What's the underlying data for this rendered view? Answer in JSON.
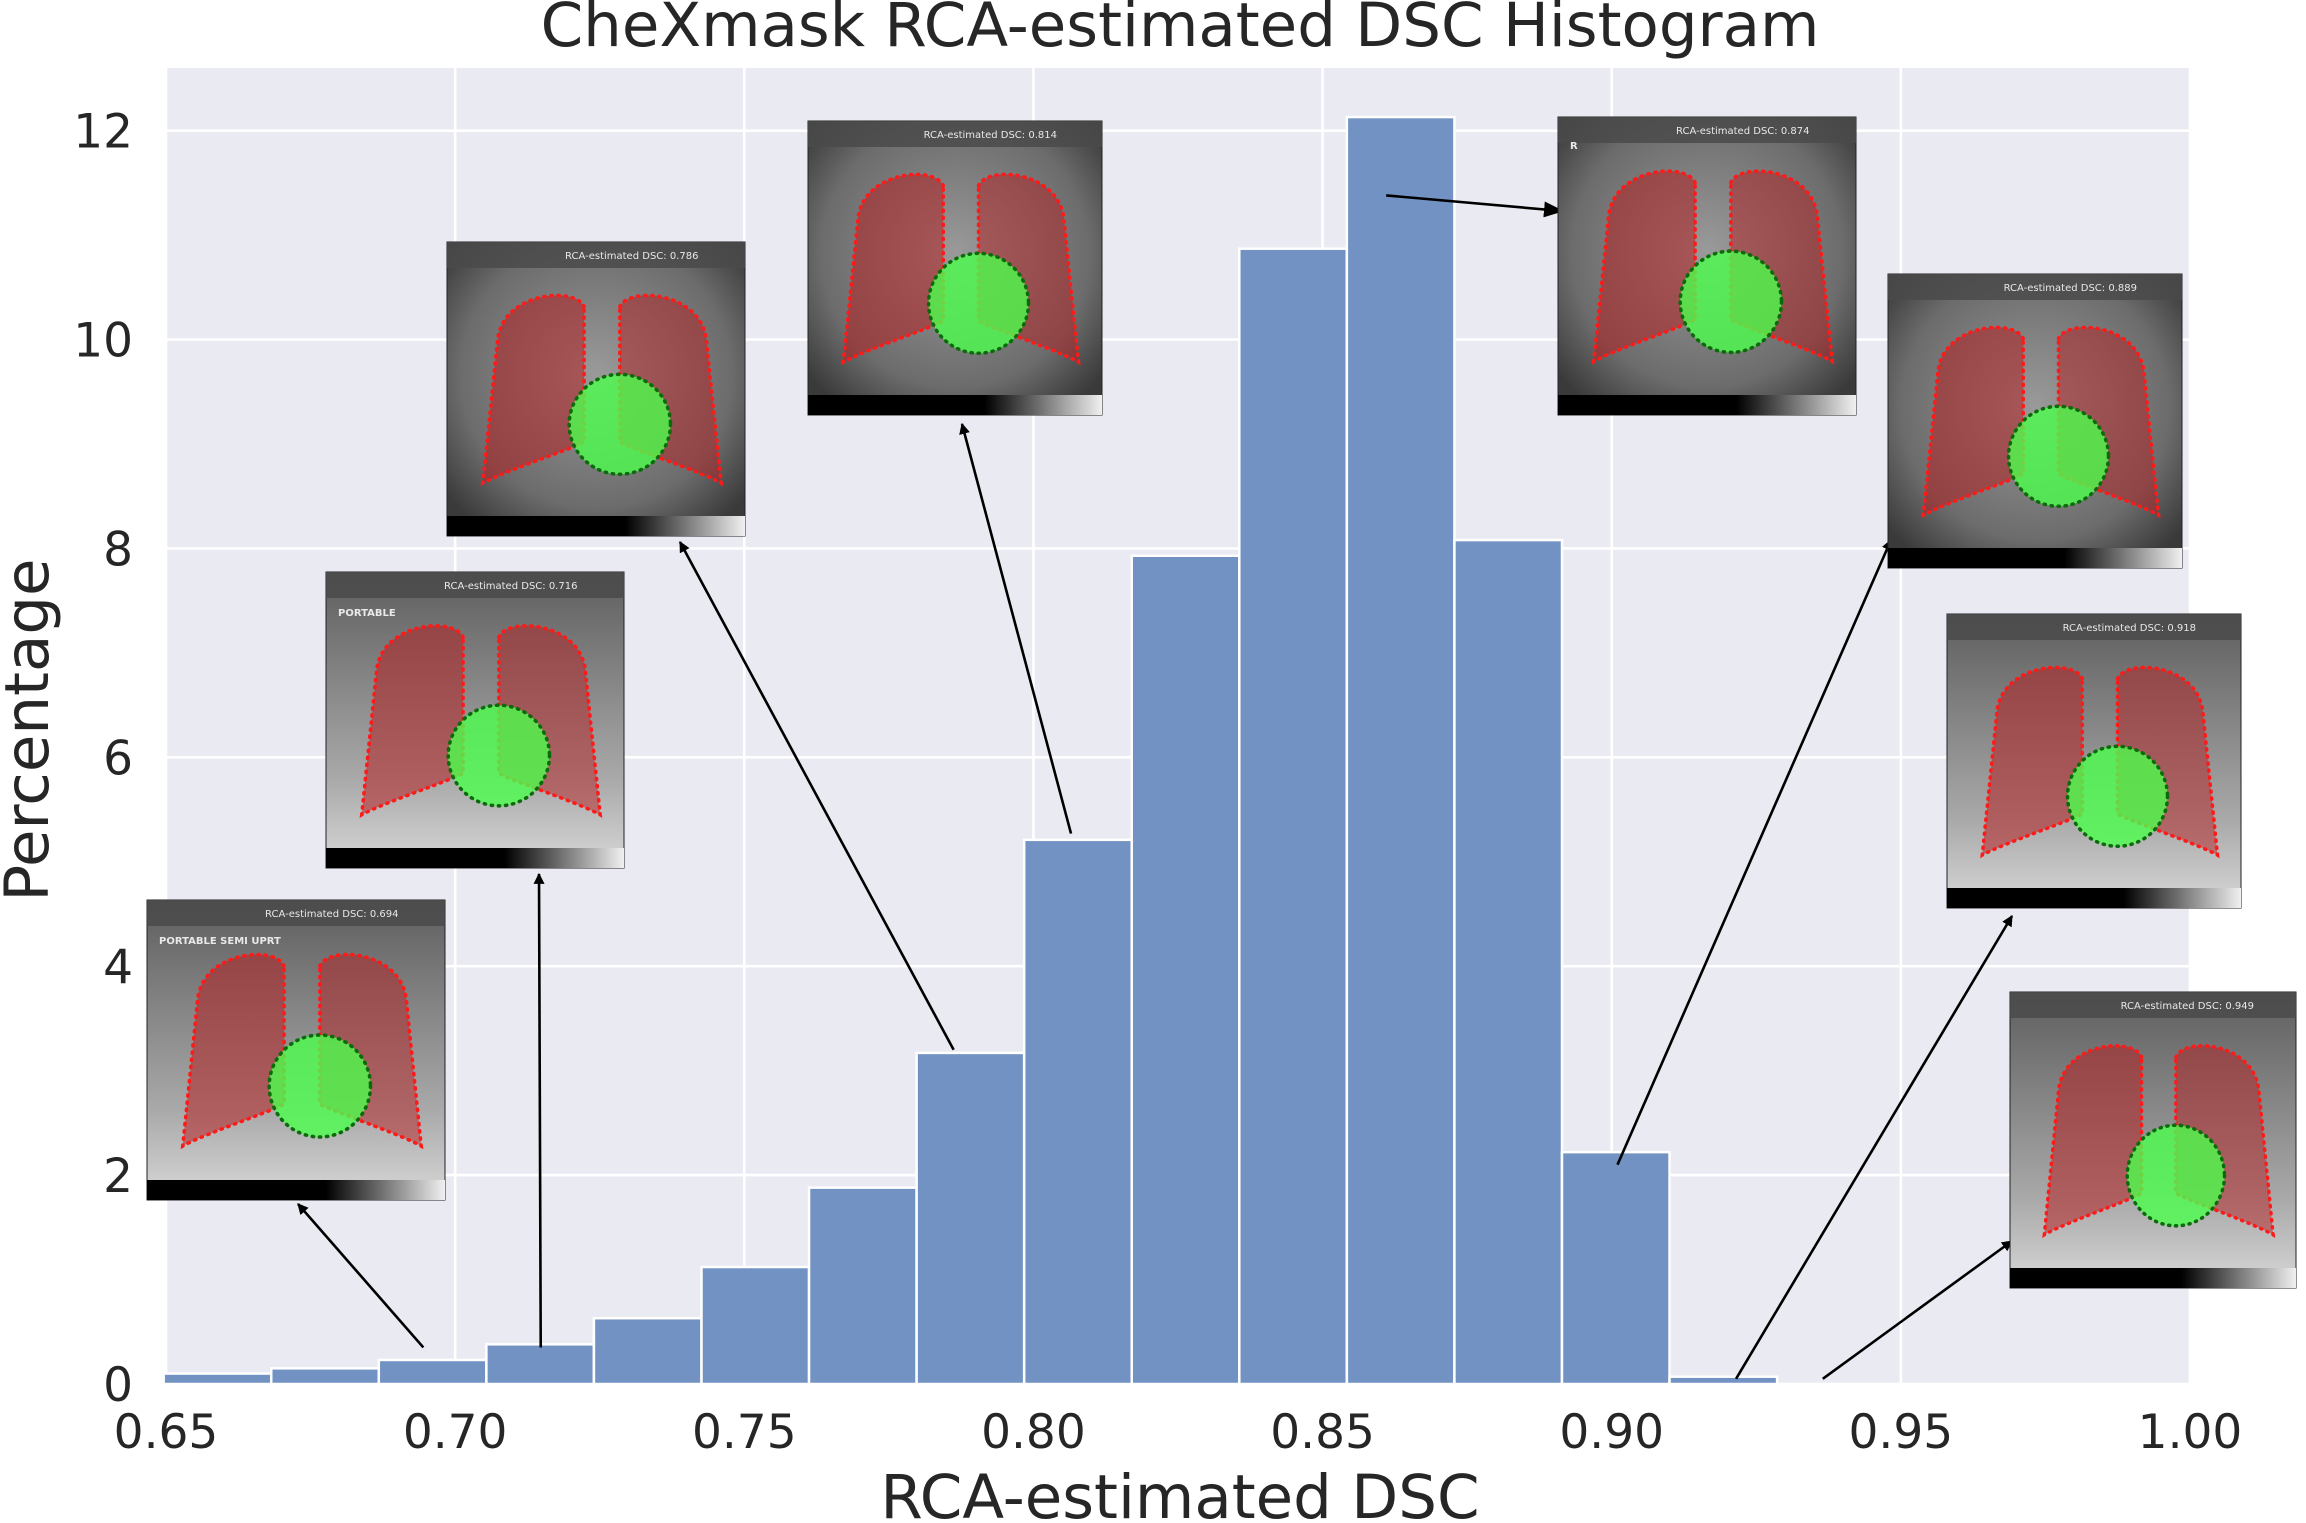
{
  "chart_data": {
    "type": "bar",
    "title": "CheXmask RCA-estimated DSC Histogram",
    "xlabel": "RCA-estimated DSC",
    "ylabel": "Percentage",
    "xlim": [
      0.65,
      1.0
    ],
    "ylim": [
      0,
      12.6
    ],
    "xticks": [
      "0.65",
      "0.70",
      "0.75",
      "0.80",
      "0.85",
      "0.90",
      "0.95",
      "1.00"
    ],
    "yticks": [
      "0",
      "2",
      "4",
      "6",
      "8",
      "10",
      "12"
    ],
    "bin_edges": [
      0.6496,
      0.6682,
      0.6868,
      0.7054,
      0.724,
      0.7426,
      0.7612,
      0.7798,
      0.7984,
      0.817,
      0.8356,
      0.8542,
      0.8728,
      0.8914,
      0.91,
      0.9286,
      0.9472,
      0.9658,
      0.9844
    ],
    "values": [
      0.1,
      0.15,
      0.23,
      0.38,
      0.63,
      1.12,
      1.88,
      3.17,
      5.21,
      7.93,
      10.87,
      12.13,
      8.08,
      2.22,
      0.07,
      0,
      0,
      0
    ],
    "grid": true,
    "bar_color": "#7292c3",
    "insets": [
      {
        "caption": "RCA-estimated DSC: 0.694",
        "label": "PORTABLE SEMI UPRT",
        "arrow_from": [
          0.6945,
          0.35
        ]
      },
      {
        "caption": "RCA-estimated DSC: 0.716",
        "label": "PORTABLE",
        "arrow_from": [
          0.7148,
          0.35
        ]
      },
      {
        "caption": "RCA-estimated DSC: 0.786",
        "label": "",
        "arrow_from": [
          0.7862,
          3.2
        ]
      },
      {
        "caption": "RCA-estimated DSC: 0.814",
        "label": "",
        "arrow_from": [
          0.8065,
          5.27
        ]
      },
      {
        "caption": "RCA-estimated DSC: 0.874",
        "label": "R",
        "arrow_from": [
          0.861,
          11.38
        ]
      },
      {
        "caption": "RCA-estimated DSC: 0.889",
        "label": "",
        "arrow_from": [
          0.901,
          2.1
        ]
      },
      {
        "caption": "RCA-estimated DSC: 0.918",
        "label": "",
        "arrow_from": [
          0.9215,
          0.05
        ]
      },
      {
        "caption": "RCA-estimated DSC: 0.949",
        "label": "",
        "arrow_from": [
          0.9365,
          0.05
        ]
      }
    ]
  }
}
